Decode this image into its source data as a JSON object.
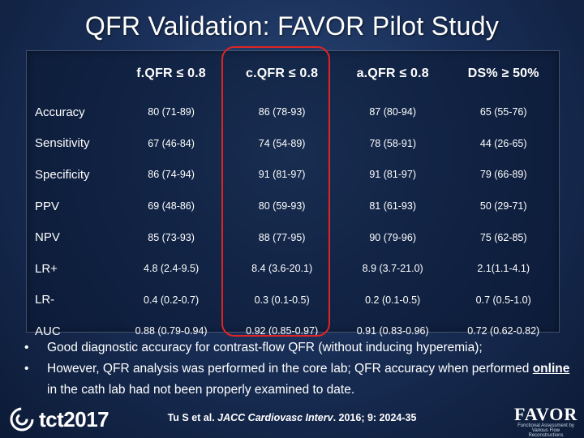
{
  "title": "QFR Validation: FAVOR Pilot Study",
  "table": {
    "headers": [
      "f.QFR ≤ 0.8",
      "c.QFR ≤ 0.8",
      "a.QFR ≤ 0.8",
      "DS% ≥ 50%"
    ],
    "rows": [
      {
        "label": "Accuracy",
        "values": [
          "80 (71-89)",
          "86 (78-93)",
          "87 (80-94)",
          "65 (55-76)"
        ]
      },
      {
        "label": "Sensitivity",
        "values": [
          "67 (46-84)",
          "74 (54-89)",
          "78 (58-91)",
          "44 (26-65)"
        ]
      },
      {
        "label": "Specificity",
        "values": [
          "86 (74-94)",
          "91 (81-97)",
          "91 (81-97)",
          "79 (66-89)"
        ]
      },
      {
        "label": "PPV",
        "values": [
          "69 (48-86)",
          "80 (59-93)",
          "81 (61-93)",
          "50 (29-71)"
        ]
      },
      {
        "label": "NPV",
        "values": [
          "85 (73-93)",
          "88 (77-95)",
          "90 (79-96)",
          "75 (62-85)"
        ]
      },
      {
        "label": "LR+",
        "values": [
          "4.8 (2.4-9.5)",
          "8.4 (3.6-20.1)",
          "8.9 (3.7-21.0)",
          "2.1(1.1-4.1)"
        ]
      },
      {
        "label": "LR-",
        "values": [
          "0.4 (0.2-0.7)",
          "0.3 (0.1-0.5)",
          "0.2 (0.1-0.5)",
          "0.7 (0.5-1.0)"
        ]
      },
      {
        "label": "AUC",
        "values": [
          "0.88 (0.79-0.94)",
          "0.92 (0.85-0.97)",
          "0.91 (0.83-0.96)",
          "0.72 (0.62-0.82)"
        ]
      }
    ],
    "highlight_color": "#e02424"
  },
  "bullets": {
    "b1": "Good diagnostic accuracy for contrast-flow QFR (without inducing hyperemia);",
    "b2_start": "However, QFR analysis was performed in the core lab; QFR accuracy when performed ",
    "b2_underlined": "online",
    "b2_end": " in the cath lab had not been properly examined to date."
  },
  "footer": {
    "logo_left_text": "tct2017",
    "citation_authors": "Tu S et al. ",
    "citation_journal": "JACC Cardiovasc Interv",
    "citation_rest": ". 2016; 9: 2024-35",
    "logo_right_text": "FAVOR",
    "logo_right_sub": "Functional Assessment by Various Flow Reconstructions"
  },
  "colors": {
    "background": "#1a3059",
    "text": "#ffffff",
    "highlight": "#e02424"
  }
}
